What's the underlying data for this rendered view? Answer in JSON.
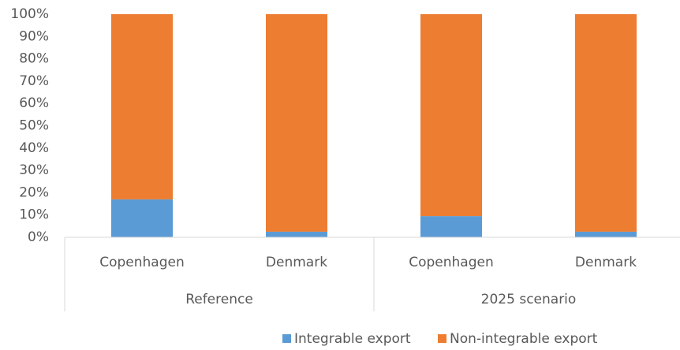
{
  "chart_data": {
    "type": "stacked_bar_100",
    "categories": [
      "Copenhagen",
      "Denmark",
      "Copenhagen",
      "Denmark"
    ],
    "groups": [
      "Reference",
      "2025 scenario"
    ],
    "series": [
      {
        "name": "Integrable export",
        "color": "#5b9bd5",
        "values": [
          17,
          2.5,
          9.5,
          2.5
        ]
      },
      {
        "name": "Non-integrable export",
        "color": "#ed7d31",
        "values": [
          83,
          97.5,
          90.5,
          97.5
        ]
      }
    ],
    "ylim": [
      0,
      100
    ],
    "yticks": [
      {
        "value": 0,
        "label": "0%"
      },
      {
        "value": 10,
        "label": "10%"
      },
      {
        "value": 20,
        "label": "20%"
      },
      {
        "value": 30,
        "label": "30%"
      },
      {
        "value": 40,
        "label": "40%"
      },
      {
        "value": 50,
        "label": "50%"
      },
      {
        "value": 60,
        "label": "60%"
      },
      {
        "value": 70,
        "label": "70%"
      },
      {
        "value": 80,
        "label": "80%"
      },
      {
        "value": 90,
        "label": "90%"
      },
      {
        "value": 100,
        "label": "100%"
      }
    ],
    "legend": "bottom"
  }
}
